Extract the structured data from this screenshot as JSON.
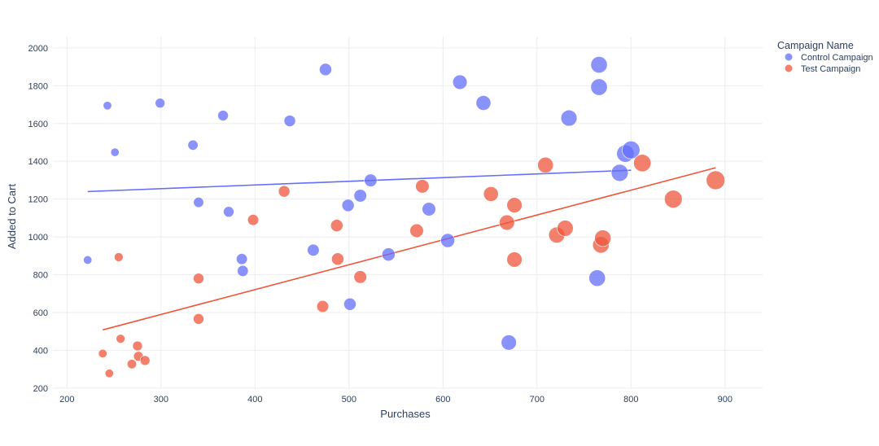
{
  "chart_data": {
    "type": "scatter",
    "xlabel": "Purchases",
    "ylabel": "Added to Cart",
    "xlim": [
      185,
      940
    ],
    "ylim": [
      195,
      2060
    ],
    "xticks": [
      200,
      300,
      400,
      500,
      600,
      700,
      800,
      900
    ],
    "yticks": [
      200,
      400,
      600,
      800,
      1000,
      1200,
      1400,
      1600,
      1800,
      2000
    ],
    "grid": true,
    "legend": {
      "title": "Campaign Name",
      "placement": "top-right"
    },
    "marker_size_encodes": "relative value (larger markers for larger values)",
    "series": [
      {
        "name": "Control Campaign",
        "color": "#636efa",
        "points": [
          {
            "x": 222,
            "y": 878,
            "s": 1.0
          },
          {
            "x": 243,
            "y": 1695,
            "s": 1.0
          },
          {
            "x": 251,
            "y": 1448,
            "s": 1.0
          },
          {
            "x": 299,
            "y": 1708,
            "s": 1.15
          },
          {
            "x": 334,
            "y": 1486,
            "s": 1.2
          },
          {
            "x": 340,
            "y": 1183,
            "s": 1.2
          },
          {
            "x": 366,
            "y": 1642,
            "s": 1.25
          },
          {
            "x": 372,
            "y": 1133,
            "s": 1.25
          },
          {
            "x": 386,
            "y": 883,
            "s": 1.3
          },
          {
            "x": 387,
            "y": 820,
            "s": 1.3
          },
          {
            "x": 437,
            "y": 1614,
            "s": 1.35
          },
          {
            "x": 462,
            "y": 930,
            "s": 1.4
          },
          {
            "x": 475,
            "y": 1886,
            "s": 1.45
          },
          {
            "x": 499,
            "y": 1167,
            "s": 1.45
          },
          {
            "x": 501,
            "y": 644,
            "s": 1.45
          },
          {
            "x": 512,
            "y": 1218,
            "s": 1.5
          },
          {
            "x": 523,
            "y": 1299,
            "s": 1.5
          },
          {
            "x": 542,
            "y": 907,
            "s": 1.55
          },
          {
            "x": 585,
            "y": 1147,
            "s": 1.6
          },
          {
            "x": 605,
            "y": 981,
            "s": 1.65
          },
          {
            "x": 618,
            "y": 1819,
            "s": 1.7
          },
          {
            "x": 643,
            "y": 1709,
            "s": 1.75
          },
          {
            "x": 670,
            "y": 441,
            "s": 1.8
          },
          {
            "x": 734,
            "y": 1629,
            "s": 1.9
          },
          {
            "x": 764,
            "y": 782,
            "s": 1.95
          },
          {
            "x": 766,
            "y": 1911,
            "s": 1.95
          },
          {
            "x": 766,
            "y": 1793,
            "s": 1.95
          },
          {
            "x": 788,
            "y": 1339,
            "s": 2.0
          },
          {
            "x": 794,
            "y": 1441,
            "s": 2.05
          },
          {
            "x": 800,
            "y": 1460,
            "s": 2.1
          }
        ],
        "trendline": {
          "x": [
            222,
            800
          ],
          "y": [
            1240,
            1353
          ]
        }
      },
      {
        "name": "Test Campaign",
        "color": "#ef553b",
        "points": [
          {
            "x": 238,
            "y": 383,
            "s": 1.0
          },
          {
            "x": 245,
            "y": 278,
            "s": 1.0
          },
          {
            "x": 255,
            "y": 893,
            "s": 1.05
          },
          {
            "x": 257,
            "y": 461,
            "s": 1.05
          },
          {
            "x": 269,
            "y": 327,
            "s": 1.1
          },
          {
            "x": 275,
            "y": 423,
            "s": 1.15
          },
          {
            "x": 276,
            "y": 368,
            "s": 1.15
          },
          {
            "x": 283,
            "y": 346,
            "s": 1.15
          },
          {
            "x": 340,
            "y": 780,
            "s": 1.25
          },
          {
            "x": 340,
            "y": 566,
            "s": 1.25
          },
          {
            "x": 398,
            "y": 1090,
            "s": 1.3
          },
          {
            "x": 431,
            "y": 1241,
            "s": 1.35
          },
          {
            "x": 472,
            "y": 632,
            "s": 1.4
          },
          {
            "x": 487,
            "y": 1060,
            "s": 1.45
          },
          {
            "x": 488,
            "y": 883,
            "s": 1.45
          },
          {
            "x": 512,
            "y": 788,
            "s": 1.5
          },
          {
            "x": 572,
            "y": 1033,
            "s": 1.6
          },
          {
            "x": 578,
            "y": 1268,
            "s": 1.6
          },
          {
            "x": 651,
            "y": 1227,
            "s": 1.75
          },
          {
            "x": 668,
            "y": 1076,
            "s": 1.8
          },
          {
            "x": 676,
            "y": 1168,
            "s": 1.8
          },
          {
            "x": 676,
            "y": 880,
            "s": 1.8
          },
          {
            "x": 709,
            "y": 1380,
            "s": 1.85
          },
          {
            "x": 721,
            "y": 1010,
            "s": 1.9
          },
          {
            "x": 730,
            "y": 1046,
            "s": 1.9
          },
          {
            "x": 768,
            "y": 958,
            "s": 1.95
          },
          {
            "x": 770,
            "y": 993,
            "s": 1.95
          },
          {
            "x": 812,
            "y": 1391,
            "s": 2.05
          },
          {
            "x": 845,
            "y": 1200,
            "s": 2.1
          },
          {
            "x": 890,
            "y": 1300,
            "s": 2.2
          }
        ],
        "trendline": {
          "x": [
            238,
            890
          ],
          "y": [
            508,
            1366
          ]
        }
      }
    ]
  }
}
